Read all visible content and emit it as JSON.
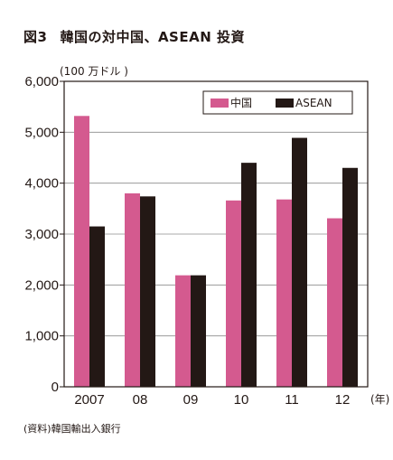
{
  "figure": {
    "number": "図3",
    "title": "韓国の対中国、ASEAN 投資",
    "unit": "(100 万ドル )",
    "source": "(資料)韓国輸出入銀行",
    "x_unit": "(年)"
  },
  "chart_data": {
    "type": "bar",
    "title": "韓国の対中国、ASEAN 投資",
    "categories": [
      "2007",
      "08",
      "09",
      "10",
      "11",
      "12"
    ],
    "series": [
      {
        "name": "中国",
        "color": "#d45a8f",
        "values": [
          5320,
          3800,
          2190,
          3660,
          3680,
          3310
        ]
      },
      {
        "name": "ASEAN",
        "color": "#231815",
        "values": [
          3150,
          3740,
          2190,
          4400,
          4890,
          4300
        ]
      }
    ],
    "ylabel": "(100 万ドル )",
    "ylim": [
      0,
      6000
    ],
    "yticks": [
      "0",
      "1,000",
      "2,000",
      "3,000",
      "4,000",
      "5,000",
      "6,000"
    ],
    "grid": true,
    "legend": "top-right"
  }
}
